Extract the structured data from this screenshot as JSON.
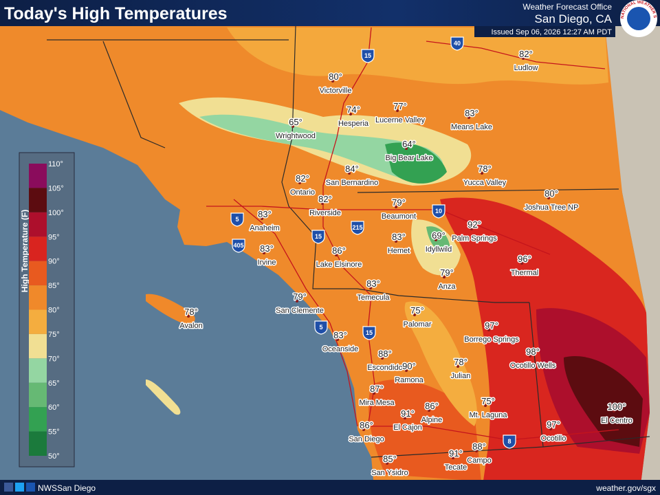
{
  "header": {
    "title": "Today's High Temperatures",
    "office_label": "Weather Forecast Office",
    "office": "San Diego, CA",
    "issued": "Issued Sep 06, 2026 12:27 AM PDT",
    "logo_text": "NATIONAL WEATHER SERVICE"
  },
  "legend": {
    "title": "High Temperature (F)",
    "labels": [
      "110°",
      "105°",
      "100°",
      "95°",
      "90°",
      "85°",
      "80°",
      "75°",
      "70°",
      "65°",
      "60°",
      "55°",
      "50°"
    ],
    "colors": [
      "#8a0c5c",
      "#5c0c10",
      "#ad0f2c",
      "#d9241f",
      "#e85a1f",
      "#f0892a",
      "#f4ad3f",
      "#f1df93",
      "#94d6a2",
      "#66b974",
      "#33a152",
      "#1b7a3c"
    ]
  },
  "cities": [
    {
      "name": "Victorville",
      "temp": "80°"
    },
    {
      "name": "Hesperia",
      "temp": "74°"
    },
    {
      "name": "Lucerne Valley",
      "temp": "77°"
    },
    {
      "name": "Means Lake",
      "temp": "83°"
    },
    {
      "name": "Ludlow",
      "temp": "82°"
    },
    {
      "name": "Wrightwood",
      "temp": "65°"
    },
    {
      "name": "Big Bear Lake",
      "temp": "64°"
    },
    {
      "name": "Yucca Valley",
      "temp": "78°"
    },
    {
      "name": "San Bernardino",
      "temp": "84°"
    },
    {
      "name": "Ontario",
      "temp": "82°"
    },
    {
      "name": "Riverside",
      "temp": "82°"
    },
    {
      "name": "Joshua Tree NP",
      "temp": "80°"
    },
    {
      "name": "Beaumont",
      "temp": "79°"
    },
    {
      "name": "Palm Springs",
      "temp": "92°"
    },
    {
      "name": "Anaheim",
      "temp": "83°"
    },
    {
      "name": "Hemet",
      "temp": "83°"
    },
    {
      "name": "Idyllwild",
      "temp": "69°"
    },
    {
      "name": "Irvine",
      "temp": "83°"
    },
    {
      "name": "Lake Elsinore",
      "temp": "86°"
    },
    {
      "name": "Thermal",
      "temp": "96°"
    },
    {
      "name": "Anza",
      "temp": "79°"
    },
    {
      "name": "Temecula",
      "temp": "83°"
    },
    {
      "name": "San Clemente",
      "temp": "79°"
    },
    {
      "name": "Palomar",
      "temp": "75°"
    },
    {
      "name": "Avalon",
      "temp": "78°"
    },
    {
      "name": "Borrego Springs",
      "temp": "97°"
    },
    {
      "name": "Oceanside",
      "temp": "83°"
    },
    {
      "name": "Escondido",
      "temp": "88°"
    },
    {
      "name": "Ramona",
      "temp": "90°"
    },
    {
      "name": "Ocotillo Wells",
      "temp": "98°"
    },
    {
      "name": "Julian",
      "temp": "78°"
    },
    {
      "name": "Mira Mesa",
      "temp": "87°"
    },
    {
      "name": "El Cajon",
      "temp": "91°"
    },
    {
      "name": "Alpine",
      "temp": "86°"
    },
    {
      "name": "Mt. Laguna",
      "temp": "75°"
    },
    {
      "name": "El Centro",
      "temp": "100°"
    },
    {
      "name": "Ocotillo",
      "temp": "97°"
    },
    {
      "name": "San Diego",
      "temp": "86°"
    },
    {
      "name": "Tecate",
      "temp": "91°"
    },
    {
      "name": "Campo",
      "temp": "88°"
    },
    {
      "name": "San Ysidro",
      "temp": "85°"
    }
  ],
  "highways": [
    "15",
    "40",
    "5",
    "405",
    "215",
    "15",
    "10",
    "5",
    "15",
    "8"
  ],
  "footer": {
    "social": "NWSSan Diego",
    "url": "weather.gov/sgx"
  }
}
